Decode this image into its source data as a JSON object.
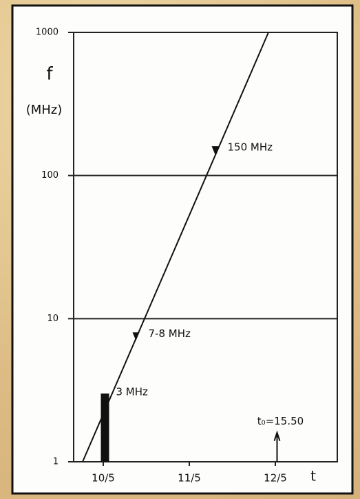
{
  "chart_data": {
    "type": "line",
    "y_label": "f",
    "y_unit": "(MHz)",
    "x_label": "t",
    "log_y": true,
    "grid": true,
    "x": [
      9.76,
      11.92
    ],
    "series": [
      {
        "color": "#111111",
        "values": [
          1,
          1000
        ]
      }
    ],
    "xlim": [
      9.656,
      12.72
    ],
    "ylim": [
      1,
      1000
    ],
    "xticks": [
      {
        "value": 10,
        "label": "10/5"
      },
      {
        "value": 11,
        "label": "11/5"
      },
      {
        "value": 12,
        "label": "12/5"
      }
    ],
    "yticks": [
      1,
      10,
      100,
      1000
    ],
    "annotations": [
      {
        "text": "150 MHz",
        "x": 11.3,
        "y": 150
      },
      {
        "text": "7-8 MHz",
        "x": 10.38,
        "y": 7.5
      },
      {
        "text": "3 MHz",
        "x": 10.02,
        "y": 3
      },
      {
        "text": "t₀=15.50",
        "x": 12.02,
        "y": 1.4
      }
    ]
  }
}
